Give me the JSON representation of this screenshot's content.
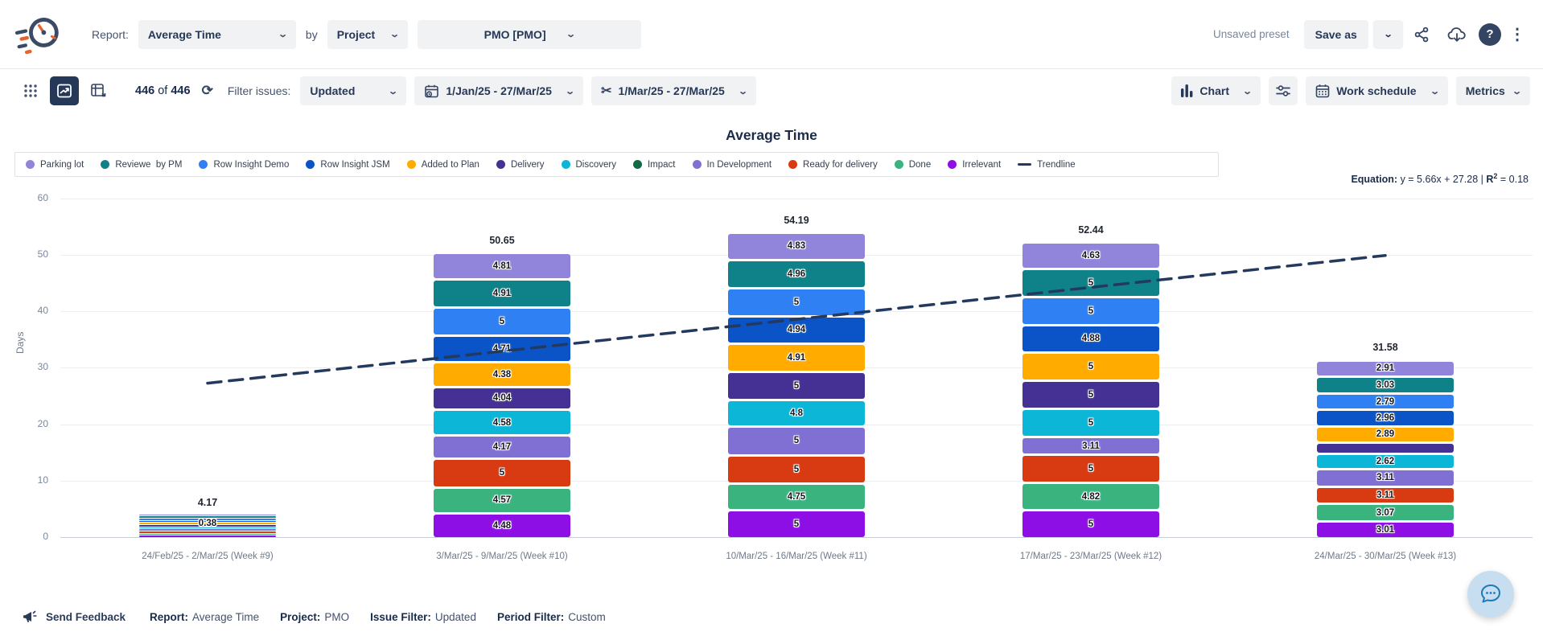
{
  "header": {
    "report_label": "Report:",
    "report_value": "Average Time",
    "by_label": "by",
    "group_value": "Project",
    "project_value": "PMO [PMO]",
    "unsaved_preset": "Unsaved preset",
    "save_as_label": "Save as",
    "help_glyph": "?"
  },
  "toolbar": {
    "count_first": "446",
    "count_mid": " of ",
    "count_second": "446",
    "refresh_glyph": "⟳",
    "filter_label": "Filter issues:",
    "filter_value": "Updated",
    "period_value": "1/Jan/25 - 27/Mar/25",
    "slice_value": "1/Mar/25 - 27/Mar/25",
    "scissors_glyph": "✂",
    "chart_label": "Chart",
    "work_schedule_label": "Work schedule",
    "metrics_label": "Metrics"
  },
  "equation": {
    "label": "Equation:",
    "body": " y = 5.66x + 27.28 | ",
    "r_label": "R",
    "r_sup": "2",
    "r_value": " = 0.18"
  },
  "footer": {
    "send_feedback": "Send Feedback",
    "items": [
      {
        "label": "Report:",
        "value": "Average Time"
      },
      {
        "label": "Project:",
        "value": "PMO"
      },
      {
        "label": "Issue Filter:",
        "value": "Updated"
      },
      {
        "label": "Period Filter:",
        "value": "Custom"
      }
    ]
  },
  "chart_data": {
    "type": "bar",
    "variant": "stacked",
    "title": "Average Time",
    "ylabel": "Days",
    "ylim": [
      0,
      60
    ],
    "yticks": [
      0,
      10,
      20,
      30,
      40,
      50,
      60
    ],
    "grid": true,
    "legend_position": "top",
    "statuses": [
      {
        "name": "Parking lot",
        "color": "#9185DB"
      },
      {
        "name": "Reviewe  by PM",
        "color": "#0E8288"
      },
      {
        "name": "Row Insight Demo",
        "color": "#2F80F2"
      },
      {
        "name": "Row Insight JSM",
        "color": "#0B54C7"
      },
      {
        "name": "Added to Plan",
        "color": "#FFAB00"
      },
      {
        "name": "Delivery",
        "color": "#453093"
      },
      {
        "name": "Discovery",
        "color": "#0CB6D6"
      },
      {
        "name": "Impact",
        "color": "#0B6B43"
      },
      {
        "name": "In Development",
        "color": "#8070D4"
      },
      {
        "name": "Ready for delivery",
        "color": "#D83A12"
      },
      {
        "name": "Done",
        "color": "#3AB37F"
      },
      {
        "name": "Irrelevant",
        "color": "#8E0FE6"
      }
    ],
    "stack_order_top_to_bottom": [
      "Parking lot",
      "Reviewe  by PM",
      "Row Insight Demo",
      "Row Insight JSM",
      "Added to Plan",
      "Delivery",
      "Discovery",
      "In Development",
      "Ready for delivery",
      "Done",
      "Irrelevant"
    ],
    "categories": [
      "24/Feb/25 - 2/Mar/25 (Week #9)",
      "3/Mar/25 - 9/Mar/25 (Week #10)",
      "10/Mar/25 - 16/Mar/25 (Week #11)",
      "17/Mar/25 - 23/Mar/25 (Week #12)",
      "24/Mar/25 - 30/Mar/25 (Week #13)"
    ],
    "bars": [
      {
        "total": "4.17",
        "stripe": true,
        "overlay_label": "0.38",
        "values": [
          0.38,
          0.38,
          0.38,
          0.38,
          0.38,
          0.38,
          0.38,
          0.38,
          0.38,
          0.38,
          0.38
        ]
      },
      {
        "total": "50.65",
        "values": [
          4.81,
          4.91,
          5,
          4.71,
          4.38,
          4.04,
          4.58,
          4.17,
          5,
          4.57,
          4.48
        ]
      },
      {
        "total": "54.19",
        "values": [
          4.83,
          4.96,
          5,
          4.94,
          4.91,
          5,
          4.8,
          5,
          5,
          4.75,
          5
        ]
      },
      {
        "total": "52.44",
        "values": [
          4.63,
          5,
          5,
          4.88,
          5,
          5,
          5,
          3.11,
          5,
          4.82,
          5
        ]
      },
      {
        "total": "31.58",
        "values": [
          2.91,
          3.03,
          2.79,
          2.96,
          2.89,
          2.07,
          2.62,
          3.11,
          3.11,
          3.07,
          3.01
        ]
      }
    ],
    "trendline": {
      "label": "Trendline",
      "slope": 5.66,
      "intercept": 27.28,
      "r_squared": 0.18,
      "color": "#24395E"
    }
  }
}
